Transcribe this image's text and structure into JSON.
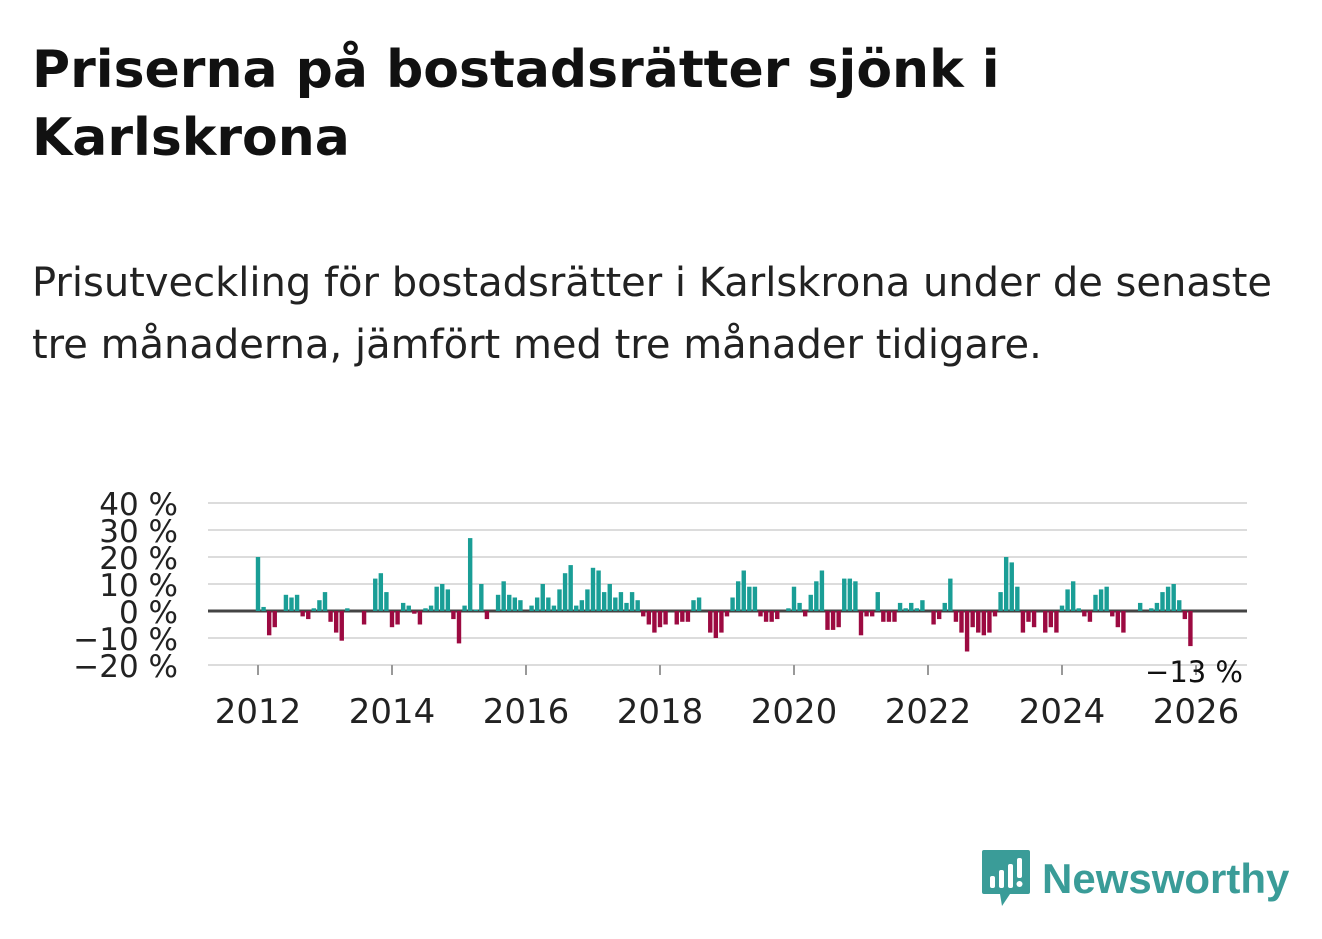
{
  "header": {
    "title": "Priserna på bostadsrätter sjönk i Karlskrona",
    "subtitle": "Prisutveckling för bostadsrätter i Karlskrona under de senaste tre månaderna, jämfört med tre månader tidigare."
  },
  "brand": {
    "name": "Newsworthy"
  },
  "colors": {
    "positive": "#1a9e96",
    "negative": "#9c0a41",
    "grid": "#dcdcdc",
    "zero": "#444444",
    "text": "#222222"
  },
  "chart_data": {
    "type": "bar",
    "title": "Priserna på bostadsrätter sjönk i Karlskrona",
    "xlabel": "",
    "ylabel": "",
    "x_start": {
      "year": 2012,
      "month": 1
    },
    "frequency": "monthly",
    "ylim": [
      -20,
      40
    ],
    "yticks": [
      -20,
      -10,
      0,
      10,
      20,
      30,
      40
    ],
    "ytick_labels": [
      "−20 %",
      "−10 %",
      "0 %",
      "10 %",
      "20 %",
      "30 %",
      "40 %"
    ],
    "xticks": [
      2012,
      2014,
      2016,
      2018,
      2020,
      2022,
      2024,
      2026
    ],
    "xtick_labels": [
      "2012",
      "2014",
      "2016",
      "2018",
      "2020",
      "2022",
      "2024",
      "2026"
    ],
    "annotation": {
      "text": "−13 %",
      "target": "last"
    },
    "values": [
      20,
      1.5,
      -9,
      -6,
      0,
      6,
      5,
      6,
      -2,
      -3,
      1,
      4,
      7,
      -4,
      -8,
      -11,
      1,
      0,
      0,
      -5,
      0,
      12,
      14,
      7,
      -6,
      -5,
      3,
      2,
      -1,
      -5,
      1,
      2,
      9,
      10,
      8,
      -3,
      -12,
      2,
      27,
      0.5,
      10,
      -3,
      0,
      6,
      11,
      6,
      5,
      4,
      0,
      2,
      5,
      10,
      5,
      2,
      8,
      14,
      17,
      2,
      4,
      8,
      16,
      15,
      7,
      10,
      5,
      7,
      3,
      7,
      4,
      -2,
      -5,
      -8,
      -6,
      -5,
      0,
      -5,
      -4,
      -4,
      4,
      5,
      0,
      -8,
      -10,
      -8,
      -2,
      5,
      11,
      15,
      9,
      9,
      -2,
      -4,
      -4,
      -3,
      0,
      1,
      9,
      3,
      -2,
      6,
      11,
      15,
      -7,
      -7,
      -6,
      12,
      12,
      11,
      -9,
      -2,
      -2,
      7,
      -4,
      -4,
      -4,
      3,
      1,
      3,
      1,
      4,
      0,
      -5,
      -3,
      3,
      12,
      -4,
      -8,
      -15,
      -6,
      -8,
      -9,
      -8,
      -2,
      7,
      20,
      18,
      9,
      -8,
      -4,
      -6,
      0,
      -8,
      -6,
      -8,
      2,
      8,
      11,
      1,
      -2,
      -4,
      6,
      8,
      9,
      -2,
      -6,
      -8,
      0,
      0,
      3,
      0,
      1,
      3,
      7,
      9,
      10,
      4,
      -3,
      -13
    ]
  }
}
